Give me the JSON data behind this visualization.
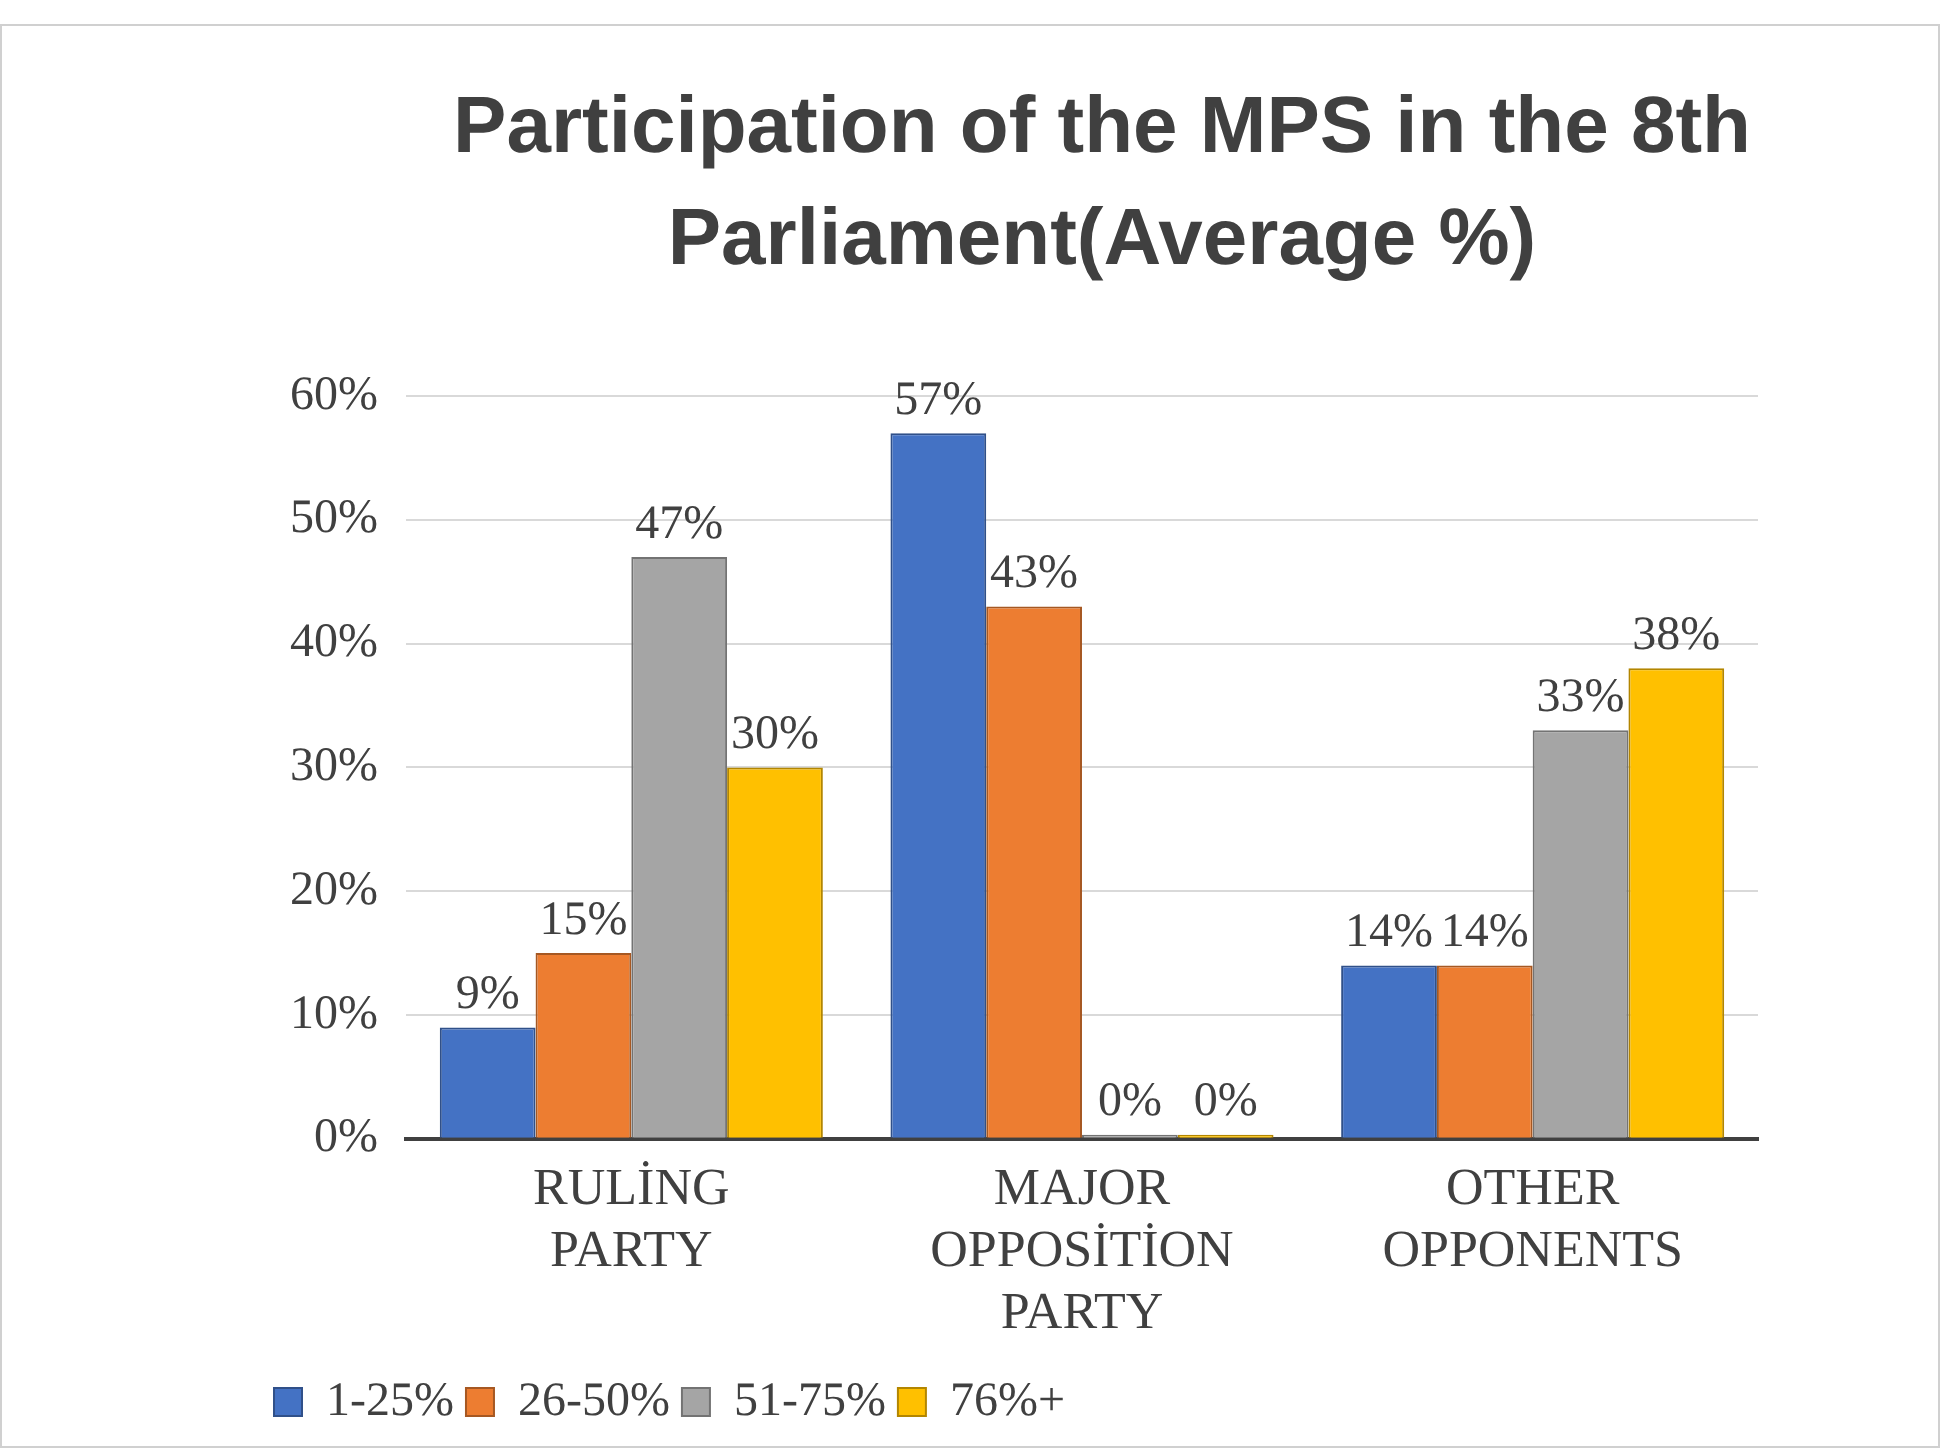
{
  "chart_data": {
    "type": "bar",
    "title": "Participation of the MPS in the 8th Parliament(Average %)",
    "categories": [
      "RULİNG PARTY",
      "MAJOR OPPOSİTİON PARTY",
      "OTHER OPPONENTS"
    ],
    "series": [
      {
        "name": "1-25%",
        "color": "#4472c4",
        "values": [
          9,
          57,
          14
        ],
        "value_labels": [
          "9%",
          "57%",
          "14%"
        ]
      },
      {
        "name": "26-50%",
        "color": "#ed7d31",
        "values": [
          15,
          43,
          14
        ],
        "value_labels": [
          "15%",
          "43%",
          "14%"
        ]
      },
      {
        "name": "51-75%",
        "color": "#a5a5a5",
        "values": [
          47,
          0,
          33
        ],
        "value_labels": [
          "47%",
          "0%",
          "33%"
        ]
      },
      {
        "name": "76%+",
        "color": "#ffc000",
        "values": [
          30,
          0,
          38
        ],
        "value_labels": [
          "30%",
          "0%",
          "38%"
        ]
      }
    ],
    "ylim": [
      0,
      60
    ],
    "yticks": [
      {
        "value": 0,
        "label": "0%"
      },
      {
        "value": 10,
        "label": "10%"
      },
      {
        "value": 20,
        "label": "20%"
      },
      {
        "value": 30,
        "label": "30%"
      },
      {
        "value": 40,
        "label": "40%"
      },
      {
        "value": 50,
        "label": "50%"
      },
      {
        "value": 60,
        "label": "60%"
      }
    ],
    "grid": "y",
    "legend": "bottom left"
  }
}
